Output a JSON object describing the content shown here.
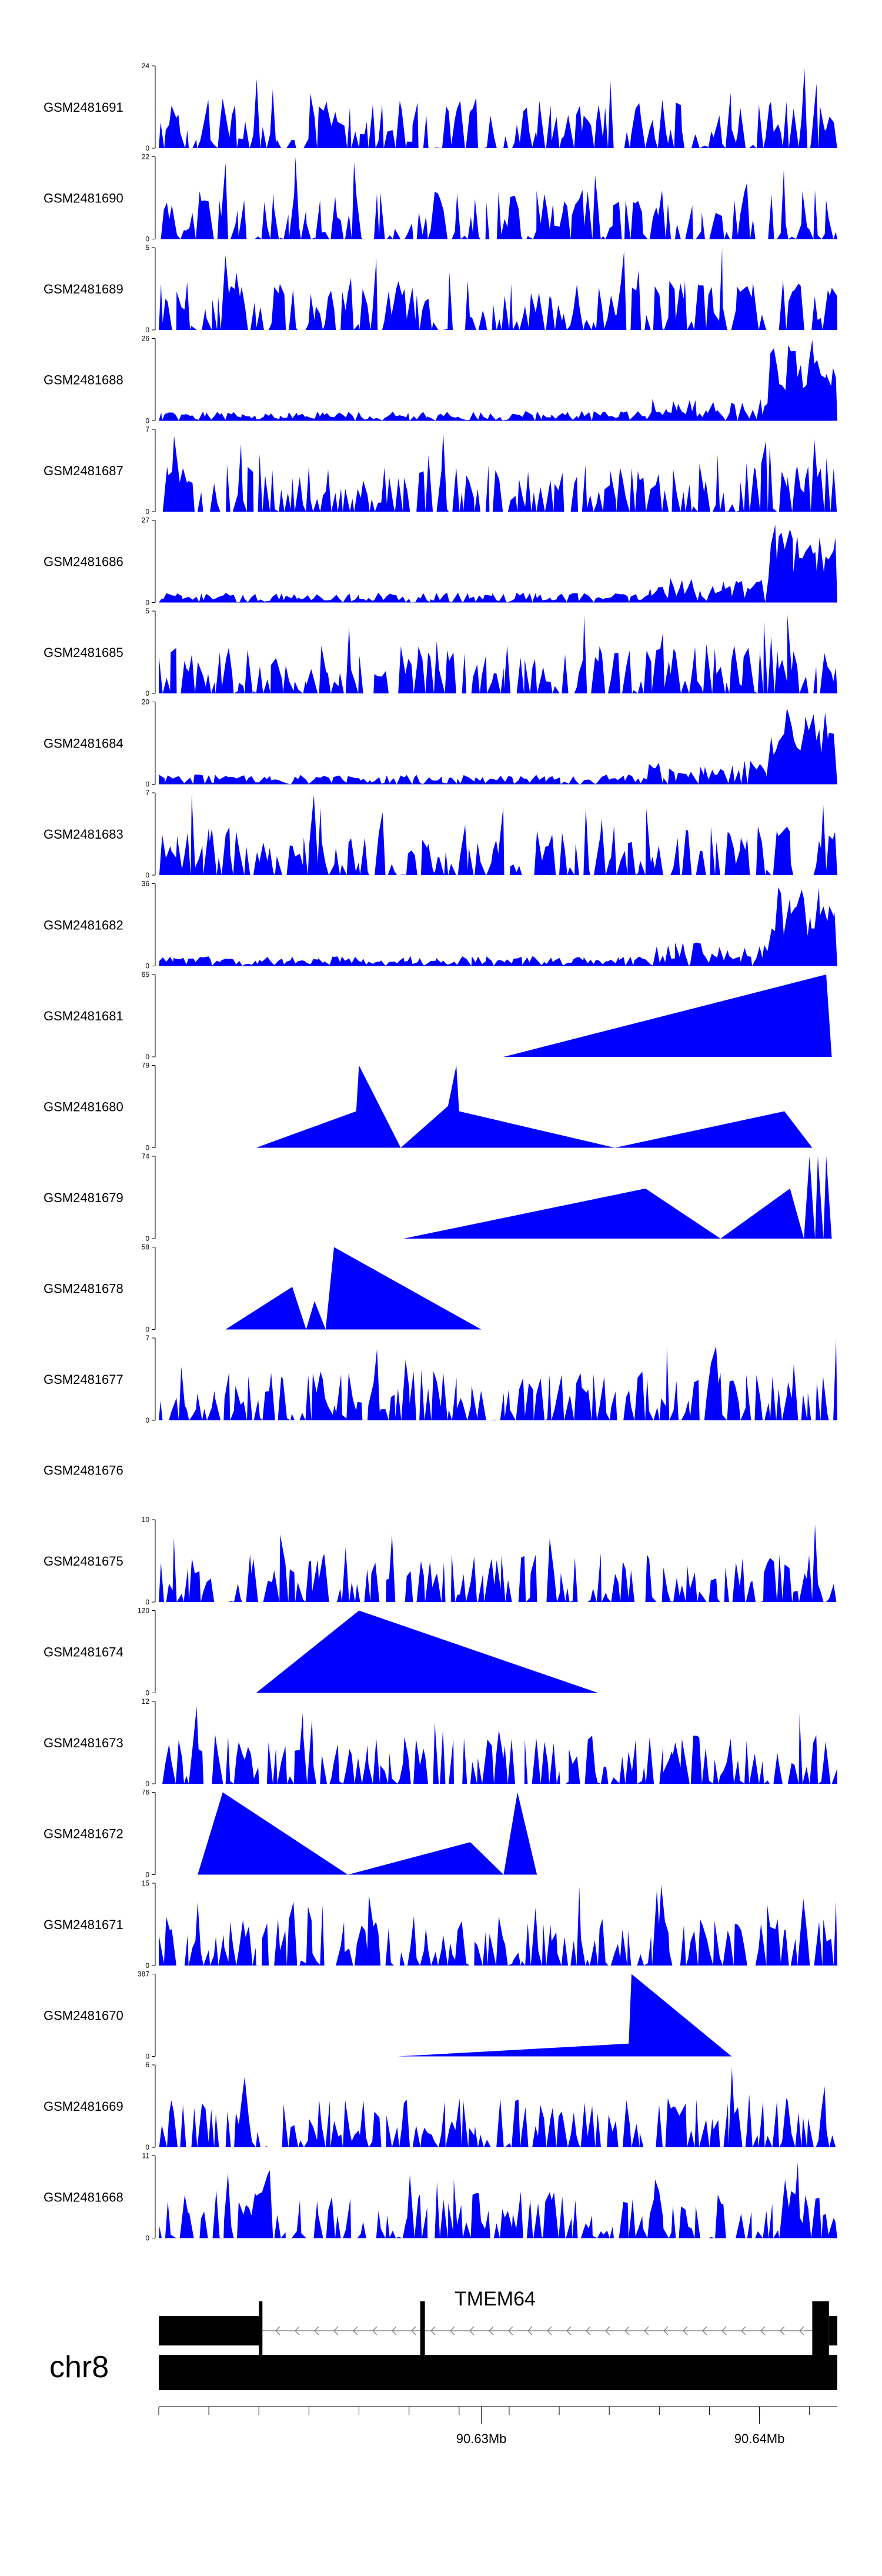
{
  "colors": {
    "fill": "#0000ff",
    "axis": "#000000",
    "gene": "#000000",
    "intron": "#888888"
  },
  "chart_data": {
    "type": "area",
    "xlim": [
      90.6184,
      90.6428
    ],
    "tracks": [
      {
        "name": "GSM2481691",
        "ymax": 24,
        "x": [],
        "y": []
      },
      {
        "name": "GSM2481690",
        "ymax": 22,
        "x": [],
        "y": []
      },
      {
        "name": "GSM2481689",
        "ymax": 5,
        "x": [],
        "y": []
      },
      {
        "name": "GSM2481688",
        "ymax": 26,
        "x": [],
        "y": []
      },
      {
        "name": "GSM2481687",
        "ymax": 7,
        "x": [],
        "y": []
      },
      {
        "name": "GSM2481686",
        "ymax": 27,
        "x": [],
        "y": []
      },
      {
        "name": "GSM2481685",
        "ymax": 5,
        "x": [],
        "y": []
      },
      {
        "name": "GSM2481684",
        "ymax": 20,
        "x": [],
        "y": []
      },
      {
        "name": "GSM2481683",
        "ymax": 7,
        "x": [],
        "y": []
      },
      {
        "name": "GSM2481682",
        "ymax": 36,
        "x": [],
        "y": []
      },
      {
        "name": "GSM2481681",
        "ymax": 65,
        "x": [
          90.6308,
          90.6424,
          90.6426
        ],
        "y": [
          0,
          65,
          0
        ]
      },
      {
        "name": "GSM2481680",
        "ymax": 79,
        "x": [
          90.6219,
          90.6255,
          90.6256,
          90.6271,
          90.6288,
          90.6291,
          90.6292,
          90.6348,
          90.6409,
          90.6419
        ],
        "y": [
          0,
          35,
          79,
          0,
          40,
          79,
          35,
          0,
          35,
          0
        ]
      },
      {
        "name": "GSM2481679",
        "ymax": 74,
        "x": [
          90.6272,
          90.6359,
          90.6386,
          90.6411,
          90.6416,
          90.6418,
          90.642,
          90.6421,
          90.6423,
          90.6424,
          90.6426
        ],
        "y": [
          0,
          45,
          0,
          45,
          0,
          74,
          0,
          74,
          0,
          74,
          0
        ]
      },
      {
        "name": "GSM2481678",
        "ymax": 58,
        "x": [
          90.6208,
          90.6232,
          90.6237,
          90.624,
          90.6244,
          90.6247,
          90.63
        ],
        "y": [
          0,
          30,
          0,
          20,
          0,
          58,
          0
        ]
      },
      {
        "name": "GSM2481677",
        "ymax": 7,
        "x": [],
        "y": []
      },
      {
        "name": "GSM2481676",
        "ymax": null,
        "x": [],
        "y": []
      },
      {
        "name": "GSM2481675",
        "ymax": 10,
        "x": [],
        "y": []
      },
      {
        "name": "GSM2481674",
        "ymax": 120,
        "x": [
          90.6219,
          90.6256,
          90.6342
        ],
        "y": [
          0,
          120,
          0
        ]
      },
      {
        "name": "GSM2481673",
        "ymax": 12,
        "x": [],
        "y": []
      },
      {
        "name": "GSM2481672",
        "ymax": 76,
        "x": [
          90.6184,
          90.6198,
          90.6207,
          90.6252,
          90.6296,
          90.6308,
          90.6313,
          90.632,
          90.6357
        ],
        "y": [
          0,
          0,
          76,
          0,
          30,
          0,
          76,
          0,
          0
        ]
      },
      {
        "name": "GSM2481671",
        "ymax": 15,
        "x": [],
        "y": []
      },
      {
        "name": "GSM2481670",
        "ymax": 387,
        "x": [
          90.627,
          90.6353,
          90.6354,
          90.639
        ],
        "y": [
          0,
          60,
          387,
          0
        ]
      },
      {
        "name": "GSM2481669",
        "ymax": 6,
        "x": [],
        "y": []
      },
      {
        "name": "GSM2481668",
        "ymax": 11,
        "x": [],
        "y": []
      }
    ],
    "gene": {
      "name": "TMEM64",
      "exons": [
        [
          90.6184,
          90.622
        ],
        [
          90.622,
          90.6221
        ],
        [
          90.6278,
          90.628
        ],
        [
          90.6419,
          90.6425
        ],
        [
          90.6425,
          90.6428
        ]
      ],
      "intron": [
        90.6221,
        90.6419
      ],
      "strand": "-"
    },
    "chromosome": "chr8",
    "axis_ticks": [
      90.6184,
      90.6202,
      90.622,
      90.6238,
      90.6256,
      90.6274,
      90.6292,
      90.631,
      90.6328,
      90.6346,
      90.6364,
      90.6382,
      90.64,
      90.6418
    ],
    "axis_labels": [
      {
        "value": 90.63,
        "label": "90.63Mb"
      },
      {
        "value": 90.64,
        "label": "90.64Mb"
      }
    ]
  }
}
